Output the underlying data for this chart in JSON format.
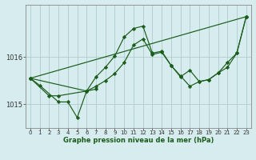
{
  "background_color": "#d6ecee",
  "grid_color": "#b0cccc",
  "line_color": "#1a5c1a",
  "marker_color": "#1a5c1a",
  "xlabel": "Graphe pression niveau de la mer (hPa)",
  "yticks": [
    1015,
    1016
  ],
  "ylim": [
    1014.5,
    1017.1
  ],
  "xlim": [
    -0.5,
    23.5
  ],
  "xticks": [
    0,
    1,
    2,
    3,
    4,
    5,
    6,
    7,
    8,
    9,
    10,
    11,
    12,
    13,
    14,
    15,
    16,
    17,
    18,
    19,
    20,
    21,
    22,
    23
  ],
  "series": [
    {
      "x": [
        0,
        23
      ],
      "y": [
        1015.55,
        1016.85
      ]
    },
    {
      "x": [
        0,
        1,
        3,
        4,
        5,
        6,
        7
      ],
      "y": [
        1015.55,
        1015.4,
        1015.05,
        1015.05,
        1014.72,
        1015.28,
        1015.32
      ]
    },
    {
      "x": [
        0,
        2,
        3,
        6,
        7,
        8,
        9,
        10,
        11,
        12,
        13,
        14,
        15,
        16,
        17,
        18,
        19,
        20,
        21,
        22,
        23
      ],
      "y": [
        1015.55,
        1015.18,
        1015.18,
        1015.28,
        1015.38,
        1015.5,
        1015.65,
        1015.88,
        1016.25,
        1016.38,
        1016.05,
        1016.1,
        1015.82,
        1015.58,
        1015.72,
        1015.48,
        1015.52,
        1015.66,
        1015.78,
        1016.08,
        1016.85
      ]
    },
    {
      "x": [
        0,
        6,
        7,
        8,
        9,
        10,
        11,
        12,
        13,
        14,
        15,
        16,
        17,
        18,
        19,
        20,
        21,
        22,
        23
      ],
      "y": [
        1015.55,
        1015.28,
        1015.58,
        1015.78,
        1016.02,
        1016.42,
        1016.6,
        1016.65,
        1016.08,
        1016.12,
        1015.82,
        1015.6,
        1015.38,
        1015.48,
        1015.52,
        1015.66,
        1015.88,
        1016.08,
        1016.85
      ]
    }
  ]
}
